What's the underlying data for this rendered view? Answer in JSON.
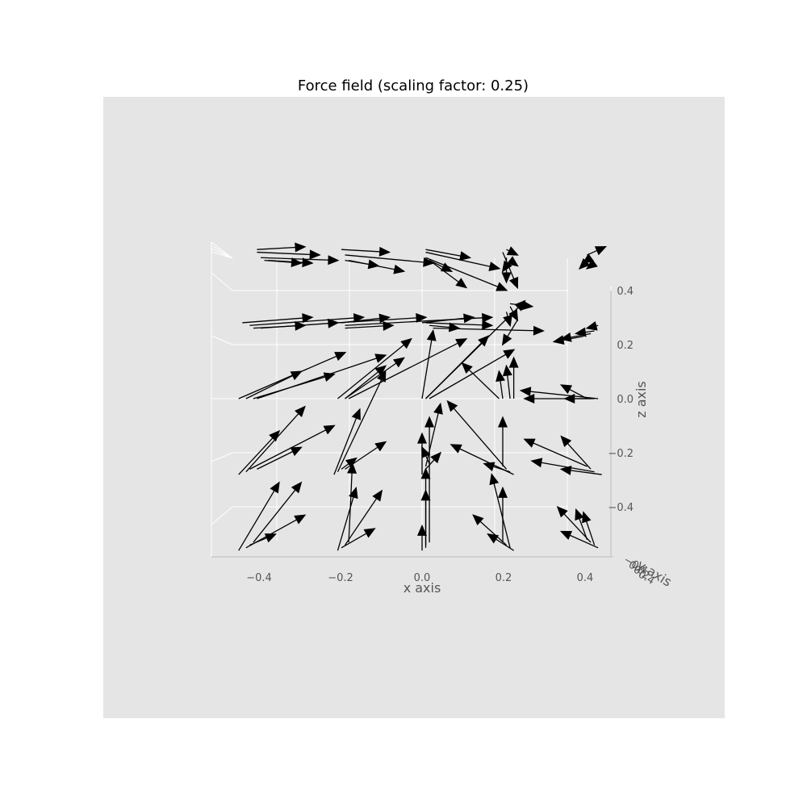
{
  "chart_data": {
    "type": "quiver3d",
    "title": "Force field (scaling factor: 0.25)",
    "xlabel": "x axis",
    "ylabel": "y axis",
    "zlabel": "z axis",
    "xlim": [
      -0.5,
      0.5
    ],
    "zlim": [
      -0.5,
      0.5
    ],
    "x_ticks": [
      "−0.4",
      "−0.2",
      "0.0",
      "0.2",
      "0.4"
    ],
    "z_ticks": [
      "−0.4",
      "−0.2",
      "0.0",
      "0.2",
      "0.4"
    ],
    "y_ticks": [
      "−0.4",
      "0.0",
      "0.2",
      "0.4"
    ],
    "grid": true,
    "arrow_color": "#000000",
    "pane_color": "#e5e5e5",
    "grid_color": "#ffffff",
    "arrows": [
      {
        "x0": -0.45,
        "z0": 0.55,
        "x1": -0.32,
        "z1": 0.56
      },
      {
        "x0": -0.45,
        "z0": 0.54,
        "x1": -0.28,
        "z1": 0.53
      },
      {
        "x0": -0.44,
        "z0": 0.52,
        "x1": -0.23,
        "z1": 0.51
      },
      {
        "x0": -0.43,
        "z0": 0.51,
        "x1": -0.33,
        "z1": 0.5
      },
      {
        "x0": -0.42,
        "z0": 0.51,
        "x1": -0.3,
        "z1": 0.5
      },
      {
        "x0": -0.22,
        "z0": 0.55,
        "x1": -0.09,
        "z1": 0.54
      },
      {
        "x0": -0.21,
        "z0": 0.53,
        "x1": 0.03,
        "z1": 0.5
      },
      {
        "x0": -0.21,
        "z0": 0.51,
        "x1": -0.12,
        "z1": 0.49
      },
      {
        "x0": -0.2,
        "z0": 0.51,
        "x1": -0.05,
        "z1": 0.47
      },
      {
        "x0": 0.01,
        "z0": 0.55,
        "x1": 0.13,
        "z1": 0.52
      },
      {
        "x0": 0.01,
        "z0": 0.54,
        "x1": 0.21,
        "z1": 0.48
      },
      {
        "x0": 0.01,
        "z0": 0.52,
        "x1": 0.23,
        "z1": 0.4
      },
      {
        "x0": 0.02,
        "z0": 0.51,
        "x1": 0.08,
        "z1": 0.47
      },
      {
        "x0": 0.02,
        "z0": 0.51,
        "x1": 0.12,
        "z1": 0.41
      },
      {
        "x0": 0.23,
        "z0": 0.55,
        "x1": 0.26,
        "z1": 0.53
      },
      {
        "x0": 0.22,
        "z0": 0.54,
        "x1": 0.26,
        "z1": 0.41
      },
      {
        "x0": 0.23,
        "z0": 0.52,
        "x1": 0.23,
        "z1": 0.43
      },
      {
        "x0": 0.24,
        "z0": 0.51,
        "x1": 0.26,
        "z1": 0.49
      },
      {
        "x0": 0.24,
        "z0": 0.51,
        "x1": 0.22,
        "z1": 0.47
      },
      {
        "x0": 0.45,
        "z0": 0.53,
        "x1": 0.5,
        "z1": 0.56
      },
      {
        "x0": 0.46,
        "z0": 0.52,
        "x1": 0.43,
        "z1": 0.48
      },
      {
        "x0": 0.45,
        "z0": 0.51,
        "x1": 0.44,
        "z1": 0.5
      },
      {
        "x0": 0.47,
        "z0": 0.5,
        "x1": 0.45,
        "z1": 0.48
      },
      {
        "x0": -0.49,
        "z0": 0.28,
        "x1": -0.3,
        "z1": 0.3
      },
      {
        "x0": -0.47,
        "z0": 0.27,
        "x1": -0.16,
        "z1": 0.3
      },
      {
        "x0": -0.46,
        "z0": 0.26,
        "x1": -0.32,
        "z1": 0.27
      },
      {
        "x0": -0.44,
        "z0": 0.26,
        "x1": -0.23,
        "z1": 0.28
      },
      {
        "x0": -0.23,
        "z0": 0.28,
        "x1": 0.01,
        "z1": 0.3
      },
      {
        "x0": -0.22,
        "z0": 0.28,
        "x1": -0.09,
        "z1": 0.3
      },
      {
        "x0": -0.21,
        "z0": 0.27,
        "x1": 0.19,
        "z1": 0.3
      },
      {
        "x0": -0.21,
        "z0": 0.26,
        "x1": -0.08,
        "z1": 0.27
      },
      {
        "x0": 0.0,
        "z0": 0.28,
        "x1": 0.14,
        "z1": 0.3
      },
      {
        "x0": 0.01,
        "z0": 0.28,
        "x1": 0.19,
        "z1": 0.27
      },
      {
        "x0": 0.02,
        "z0": 0.27,
        "x1": 0.1,
        "z1": 0.26
      },
      {
        "x0": 0.03,
        "z0": 0.26,
        "x1": 0.33,
        "z1": 0.25
      },
      {
        "x0": 0.24,
        "z0": 0.35,
        "x1": 0.3,
        "z1": 0.34
      },
      {
        "x0": 0.24,
        "z0": 0.34,
        "x1": 0.26,
        "z1": 0.29
      },
      {
        "x0": 0.23,
        "z0": 0.32,
        "x1": 0.24,
        "z1": 0.27
      },
      {
        "x0": 0.26,
        "z0": 0.29,
        "x1": 0.22,
        "z1": 0.2
      },
      {
        "x0": 0.48,
        "z0": 0.27,
        "x1": 0.45,
        "z1": 0.26
      },
      {
        "x0": 0.47,
        "z0": 0.25,
        "x1": 0.42,
        "z1": 0.24
      },
      {
        "x0": 0.46,
        "z0": 0.24,
        "x1": 0.38,
        "z1": 0.22
      },
      {
        "x0": 0.44,
        "z0": 0.23,
        "x1": 0.36,
        "z1": 0.21
      },
      {
        "x0": -0.5,
        "z0": 0.0,
        "x1": -0.21,
        "z1": 0.17
      },
      {
        "x0": -0.48,
        "z0": 0.0,
        "x1": -0.33,
        "z1": 0.1
      },
      {
        "x0": -0.46,
        "z0": 0.0,
        "x1": -0.24,
        "z1": 0.09
      },
      {
        "x0": -0.45,
        "z0": 0.0,
        "x1": -0.1,
        "z1": 0.16
      },
      {
        "x0": -0.23,
        "z0": 0.0,
        "x1": -0.03,
        "z1": 0.22
      },
      {
        "x0": -0.21,
        "z0": 0.0,
        "x1": -0.05,
        "z1": 0.15
      },
      {
        "x0": -0.21,
        "z0": 0.0,
        "x1": -0.1,
        "z1": 0.12
      },
      {
        "x0": -0.2,
        "z0": 0.0,
        "x1": 0.12,
        "z1": 0.22
      },
      {
        "x0": 0.0,
        "z0": 0.0,
        "x1": 0.03,
        "z1": 0.25
      },
      {
        "x0": 0.01,
        "z0": 0.0,
        "x1": 0.18,
        "z1": 0.23
      },
      {
        "x0": 0.01,
        "z0": 0.0,
        "x1": 0.28,
        "z1": 0.36
      },
      {
        "x0": 0.02,
        "z0": 0.0,
        "x1": 0.25,
        "z1": 0.18
      },
      {
        "x0": 0.21,
        "z0": 0.0,
        "x1": 0.11,
        "z1": 0.13
      },
      {
        "x0": 0.22,
        "z0": 0.0,
        "x1": 0.21,
        "z1": 0.1
      },
      {
        "x0": 0.24,
        "z0": 0.0,
        "x1": 0.23,
        "z1": 0.12
      },
      {
        "x0": 0.25,
        "z0": 0.0,
        "x1": 0.25,
        "z1": 0.15
      },
      {
        "x0": 0.48,
        "z0": 0.0,
        "x1": 0.27,
        "z1": 0.03
      },
      {
        "x0": 0.47,
        "z0": 0.0,
        "x1": 0.28,
        "z1": 0.0
      },
      {
        "x0": 0.46,
        "z0": 0.0,
        "x1": 0.39,
        "z1": 0.0
      },
      {
        "x0": 0.45,
        "z0": 0.0,
        "x1": 0.38,
        "z1": 0.05
      },
      {
        "x0": -0.5,
        "z0": -0.28,
        "x1": -0.39,
        "z1": -0.12
      },
      {
        "x0": -0.48,
        "z0": -0.27,
        "x1": -0.32,
        "z1": -0.03
      },
      {
        "x0": -0.47,
        "z0": -0.26,
        "x1": -0.24,
        "z1": -0.1
      },
      {
        "x0": -0.45,
        "z0": -0.26,
        "x1": -0.33,
        "z1": -0.18
      },
      {
        "x0": -0.24,
        "z0": -0.28,
        "x1": -0.17,
        "z1": -0.04
      },
      {
        "x0": -0.23,
        "z0": -0.27,
        "x1": -0.1,
        "z1": 0.1
      },
      {
        "x0": -0.22,
        "z0": -0.26,
        "x1": -0.18,
        "z1": -0.22
      },
      {
        "x0": -0.21,
        "z0": -0.26,
        "x1": -0.1,
        "z1": -0.16
      },
      {
        "x0": 0.0,
        "z0": -0.28,
        "x1": 0.0,
        "z1": -0.13
      },
      {
        "x0": 0.01,
        "z0": -0.26,
        "x1": 0.05,
        "z1": -0.2
      },
      {
        "x0": 0.01,
        "z0": -0.25,
        "x1": 0.05,
        "z1": -0.02
      },
      {
        "x0": 0.02,
        "z0": -0.24,
        "x1": 0.0,
        "z1": -0.18
      },
      {
        "x0": 0.25,
        "z0": -0.28,
        "x1": 0.08,
        "z1": -0.17
      },
      {
        "x0": 0.24,
        "z0": -0.27,
        "x1": 0.17,
        "z1": -0.24
      },
      {
        "x0": 0.23,
        "z0": -0.26,
        "x1": 0.07,
        "z1": -0.01
      },
      {
        "x0": 0.22,
        "z0": -0.25,
        "x1": 0.22,
        "z1": -0.07
      },
      {
        "x0": 0.49,
        "z0": -0.28,
        "x1": 0.38,
        "z1": -0.26
      },
      {
        "x0": 0.47,
        "z0": -0.27,
        "x1": 0.3,
        "z1": -0.23
      },
      {
        "x0": 0.46,
        "z0": -0.26,
        "x1": 0.38,
        "z1": -0.14
      },
      {
        "x0": 0.45,
        "z0": -0.25,
        "x1": 0.28,
        "z1": -0.15
      },
      {
        "x0": -0.5,
        "z0": -0.56,
        "x1": -0.39,
        "z1": -0.31
      },
      {
        "x0": -0.48,
        "z0": -0.55,
        "x1": -0.32,
        "z1": -0.43
      },
      {
        "x0": -0.47,
        "z0": -0.54,
        "x1": -0.4,
        "z1": -0.5
      },
      {
        "x0": -0.46,
        "z0": -0.53,
        "x1": -0.33,
        "z1": -0.31
      },
      {
        "x0": -0.23,
        "z0": -0.56,
        "x1": -0.18,
        "z1": -0.33
      },
      {
        "x0": -0.22,
        "z0": -0.55,
        "x1": -0.13,
        "z1": -0.48
      },
      {
        "x0": -0.21,
        "z0": -0.54,
        "x1": -0.11,
        "z1": -0.34
      },
      {
        "x0": -0.2,
        "z0": -0.53,
        "x1": -0.19,
        "z1": -0.24
      },
      {
        "x0": 0.0,
        "z0": -0.56,
        "x1": 0.0,
        "z1": -0.47
      },
      {
        "x0": 0.01,
        "z0": -0.55,
        "x1": 0.01,
        "z1": -0.26
      },
      {
        "x0": 0.01,
        "z0": -0.54,
        "x1": 0.01,
        "z1": -0.34
      },
      {
        "x0": 0.02,
        "z0": -0.53,
        "x1": 0.02,
        "z1": -0.07
      },
      {
        "x0": 0.25,
        "z0": -0.56,
        "x1": 0.18,
        "z1": -0.5
      },
      {
        "x0": 0.24,
        "z0": -0.55,
        "x1": 0.19,
        "z1": -0.28
      },
      {
        "x0": 0.23,
        "z0": -0.54,
        "x1": 0.14,
        "z1": -0.43
      },
      {
        "x0": 0.22,
        "z0": -0.53,
        "x1": 0.22,
        "z1": -0.33
      },
      {
        "x0": 0.48,
        "z0": -0.55,
        "x1": 0.38,
        "z1": -0.49
      },
      {
        "x0": 0.47,
        "z0": -0.54,
        "x1": 0.44,
        "z1": -0.42
      },
      {
        "x0": 0.46,
        "z0": -0.53,
        "x1": 0.37,
        "z1": -0.4
      },
      {
        "x0": 0.45,
        "z0": -0.52,
        "x1": 0.42,
        "z1": -0.41
      }
    ]
  }
}
